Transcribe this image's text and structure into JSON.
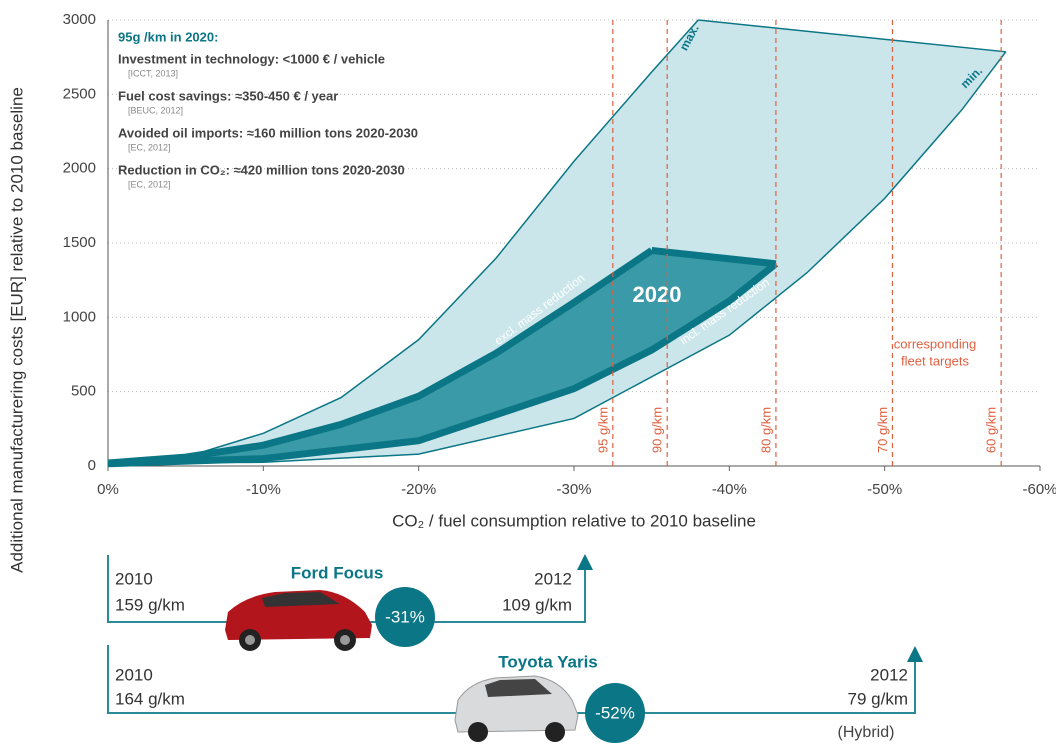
{
  "chart_data": {
    "type": "area",
    "ylabel": "Additional manufacturering costs [EUR] relative to 2010 baseline",
    "xlabel": "CO₂ / fuel consumption relative to 2010 baseline",
    "xlim": [
      0,
      -60
    ],
    "ylim": [
      0,
      3000
    ],
    "xticks": [
      {
        "value": 0,
        "label": "0%"
      },
      {
        "value": -10,
        "label": "-10%"
      },
      {
        "value": -20,
        "label": "-20%"
      },
      {
        "value": -30,
        "label": "-30%"
      },
      {
        "value": -40,
        "label": "-40%"
      },
      {
        "value": -50,
        "label": "-50%"
      },
      {
        "value": -60,
        "label": "-60%"
      }
    ],
    "yticks": [
      0,
      500,
      1000,
      1500,
      2000,
      2500,
      3000
    ],
    "grid": true,
    "series": [
      {
        "name": "max.",
        "color": "#0b7685",
        "x": [
          0,
          -5,
          -10,
          -15,
          -20,
          -25,
          -30,
          -35,
          -38
        ],
        "values": [
          20,
          60,
          220,
          460,
          850,
          1400,
          2050,
          2650,
          3000
        ]
      },
      {
        "name": "min.",
        "color": "#0b7685",
        "x": [
          0,
          -10,
          -20,
          -30,
          -40,
          -45,
          -50,
          -55,
          -57.8
        ],
        "values": [
          20,
          25,
          80,
          320,
          880,
          1300,
          1800,
          2400,
          2786
        ]
      },
      {
        "name": "excl. mass reduction",
        "color": "#0b7685",
        "x": [
          0,
          -5,
          -10,
          -15,
          -20,
          -25,
          -30,
          -35
        ],
        "values": [
          20,
          60,
          140,
          280,
          470,
          760,
          1100,
          1450
        ]
      },
      {
        "name": "incl. mass reduction",
        "color": "#0b7685",
        "x": [
          0,
          -10,
          -20,
          -30,
          -35,
          -40,
          -43
        ],
        "values": [
          15,
          50,
          170,
          520,
          780,
          1110,
          1360
        ]
      }
    ],
    "band_colors": {
      "outer": "#cbe6eb",
      "inner": "#3b9aa7"
    },
    "band_label": "2020",
    "target_color": "#e0603f",
    "target_lines": [
      {
        "x": -32.5,
        "label": "95 g/km"
      },
      {
        "x": -36,
        "label": "90 g/km"
      },
      {
        "x": -43,
        "label": "80 g/km"
      },
      {
        "x": -50.5,
        "label": "70 g/km"
      },
      {
        "x": -57.5,
        "label": "60 g/km"
      }
    ],
    "target_note": [
      "corresponding",
      "fleet targets"
    ],
    "info_title": "95g /km in 2020:",
    "info_items": [
      {
        "text": "Investment in technology: <1000 € / vehicle",
        "source": "[ICCT, 2013]"
      },
      {
        "text": "Fuel cost savings: ≈350-450 € / year",
        "source": "[BEUC, 2012]"
      },
      {
        "text": "Avoided oil imports: ≈160 million tons 2020-2030",
        "source": "[EC, 2012]"
      },
      {
        "text": "Reduction in CO₂: ≈420 million tons 2020-2030",
        "source": "[EC, 2012]"
      }
    ]
  },
  "cars": [
    {
      "name": "Ford Focus",
      "from_year": "2010",
      "from_value": "159 g/km",
      "to_year": "2012",
      "to_value": "109 g/km",
      "change": "-31%"
    },
    {
      "name": "Toyota Yaris",
      "from_year": "2010",
      "from_value": "164 g/km",
      "to_year": "2012",
      "to_value": "79 g/km",
      "change": "-52%",
      "note": "(Hybrid)"
    }
  ]
}
